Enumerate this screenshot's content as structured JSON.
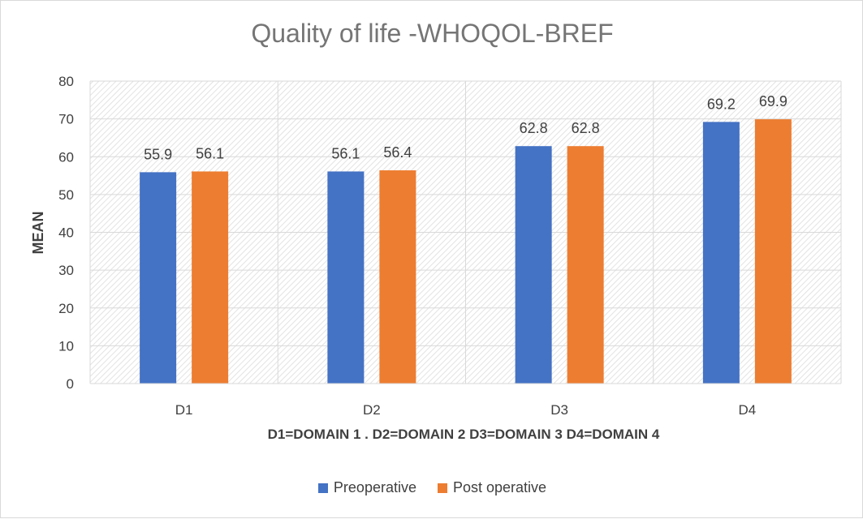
{
  "chart_data": {
    "type": "bar",
    "title": "Quality of life -WHOQOL-BREF",
    "xlabel": "D1=DOMAIN 1 . D2=DOMAIN 2 D3=DOMAIN 3 D4=DOMAIN 4",
    "ylabel": "MEAN",
    "ylim": [
      0,
      80
    ],
    "yticks": [
      0,
      10,
      20,
      30,
      40,
      50,
      60,
      70,
      80
    ],
    "categories": [
      "D1",
      "D2",
      "D3",
      "D4"
    ],
    "series": [
      {
        "name": "Preoperative",
        "values": [
          55.9,
          56.1,
          62.8,
          69.2
        ],
        "color": "#4472c4"
      },
      {
        "name": "Post operative",
        "values": [
          56.1,
          56.4,
          62.8,
          69.9
        ],
        "color": "#ed7d31"
      }
    ],
    "data_labels": [
      [
        "55.9",
        "56.1",
        "62.8",
        "69.2"
      ],
      [
        "56.1",
        "56.4",
        "62.8",
        "69.9"
      ]
    ],
    "grid": true,
    "legend_position": "bottom"
  }
}
